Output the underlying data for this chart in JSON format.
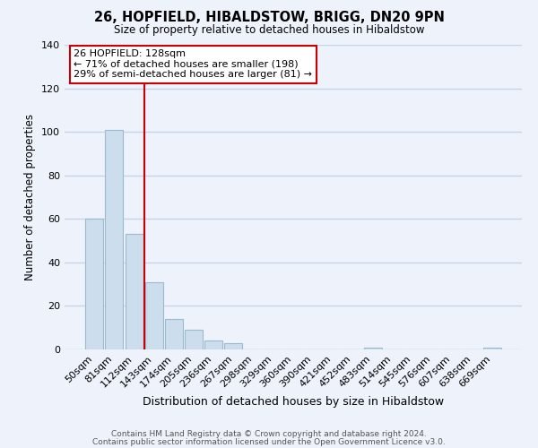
{
  "title": "26, HOPFIELD, HIBALDSTOW, BRIGG, DN20 9PN",
  "subtitle": "Size of property relative to detached houses in Hibaldstow",
  "xlabel": "Distribution of detached houses by size in Hibaldstow",
  "ylabel": "Number of detached properties",
  "bar_color": "#ccdded",
  "bar_edge_color": "#99bbcc",
  "categories": [
    "50sqm",
    "81sqm",
    "112sqm",
    "143sqm",
    "174sqm",
    "205sqm",
    "236sqm",
    "267sqm",
    "298sqm",
    "329sqm",
    "360sqm",
    "390sqm",
    "421sqm",
    "452sqm",
    "483sqm",
    "514sqm",
    "545sqm",
    "576sqm",
    "607sqm",
    "638sqm",
    "669sqm"
  ],
  "values": [
    60,
    101,
    53,
    31,
    14,
    9,
    4,
    3,
    0,
    0,
    0,
    0,
    0,
    0,
    1,
    0,
    0,
    0,
    0,
    0,
    1
  ],
  "vline_color": "#cc0000",
  "annotation_title": "26 HOPFIELD: 128sqm",
  "annotation_line1": "← 71% of detached houses are smaller (198)",
  "annotation_line2": "29% of semi-detached houses are larger (81) →",
  "ylim": [
    0,
    140
  ],
  "yticks": [
    0,
    20,
    40,
    60,
    80,
    100,
    120,
    140
  ],
  "footer1": "Contains HM Land Registry data © Crown copyright and database right 2024.",
  "footer2": "Contains public sector information licensed under the Open Government Licence v3.0.",
  "background_color": "#eef2fb",
  "grid_color": "#c8d4ea"
}
